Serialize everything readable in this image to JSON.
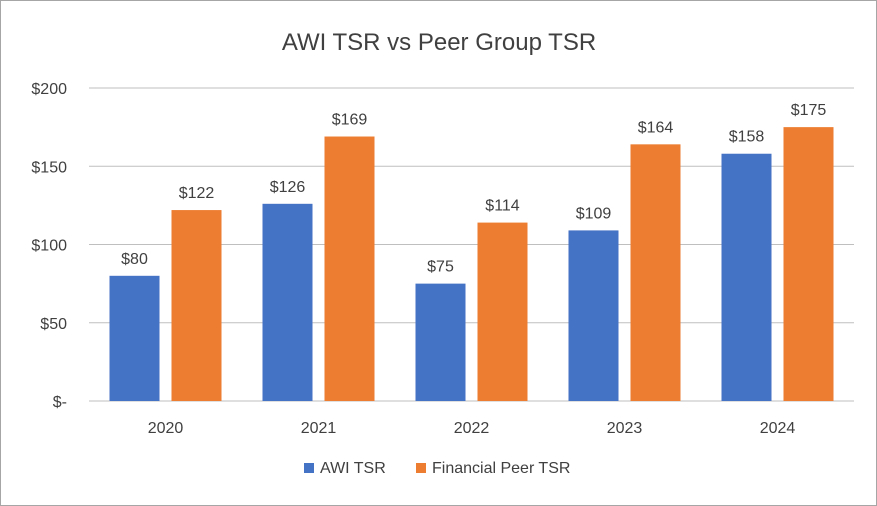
{
  "chart_data": {
    "type": "bar",
    "title": "AWI TSR vs Peer Group TSR",
    "xlabel": "",
    "ylabel": "",
    "categories": [
      "2020",
      "2021",
      "2022",
      "2023",
      "2024"
    ],
    "series": [
      {
        "name": "AWI TSR",
        "color": "#4472c4",
        "values": [
          80,
          126,
          75,
          109,
          158
        ],
        "labels": [
          "$80",
          "$126",
          "$75",
          "$109",
          "$158"
        ]
      },
      {
        "name": "Financial Peer TSR",
        "color": "#ed7d31",
        "values": [
          122,
          169,
          114,
          164,
          175
        ],
        "labels": [
          "$122",
          "$169",
          "$114",
          "$164",
          "$175"
        ]
      }
    ],
    "ylim": [
      0,
      200
    ],
    "yticks": [
      0,
      50,
      100,
      150,
      200
    ],
    "ytick_labels": [
      "$-",
      "$50",
      "$100",
      "$150",
      "$200"
    ],
    "grid": true,
    "legend_position": "bottom"
  }
}
